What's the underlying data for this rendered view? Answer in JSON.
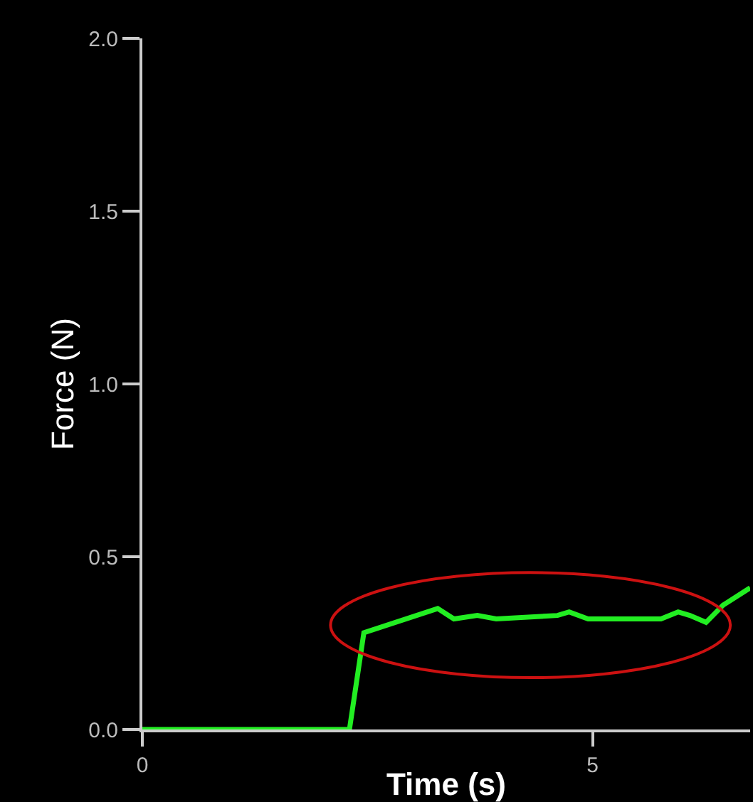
{
  "chart_data": {
    "type": "line",
    "xlabel": "Time (s)",
    "ylabel": "Force (N)",
    "x": [
      0,
      2.3,
      2.46,
      3.28,
      3.46,
      3.72,
      3.93,
      4.61,
      4.74,
      4.95,
      5.76,
      5.95,
      6.08,
      6.26,
      6.45,
      6.75
    ],
    "series": [
      {
        "color": "#22ee22",
        "values": [
          0,
          0,
          0.28,
          0.35,
          0.32,
          0.33,
          0.32,
          0.33,
          0.34,
          0.32,
          0.32,
          0.34,
          0.33,
          0.31,
          0.36,
          0.41
        ]
      }
    ],
    "xlim": [
      0,
      6.75
    ],
    "xticks": [
      0,
      5
    ],
    "ylim": [
      0,
      2.0
    ],
    "yticks": [
      {
        "value": 0,
        "label": "0.0"
      },
      {
        "value": 0.5,
        "label": "0.5"
      },
      {
        "value": 1,
        "label": "1.0"
      },
      {
        "value": 1.5,
        "label": "1.5"
      },
      {
        "value": 2,
        "label": "2.0"
      }
    ],
    "grid": false,
    "marker": "none",
    "line_style": "solid"
  }
}
